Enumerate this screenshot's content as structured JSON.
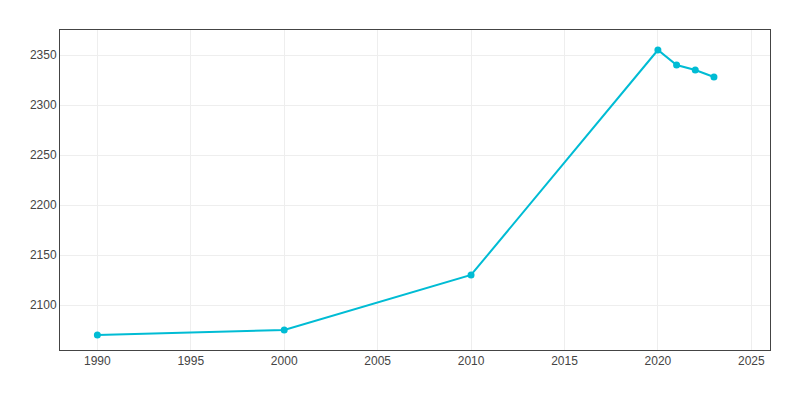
{
  "chart_data": {
    "type": "line",
    "x": [
      1990,
      2000,
      2010,
      2020,
      2021,
      2022,
      2023
    ],
    "values": [
      2070,
      2075,
      2130,
      2355,
      2340,
      2335,
      2328
    ],
    "color": "#00bcd4",
    "marker": "circle",
    "xlim": [
      1988,
      2026
    ],
    "ylim": [
      2055,
      2375
    ],
    "xticks": [
      1990,
      1995,
      2000,
      2005,
      2010,
      2015,
      2020,
      2025
    ],
    "yticks": [
      2100,
      2150,
      2200,
      2250,
      2300,
      2350
    ],
    "grid": true
  }
}
